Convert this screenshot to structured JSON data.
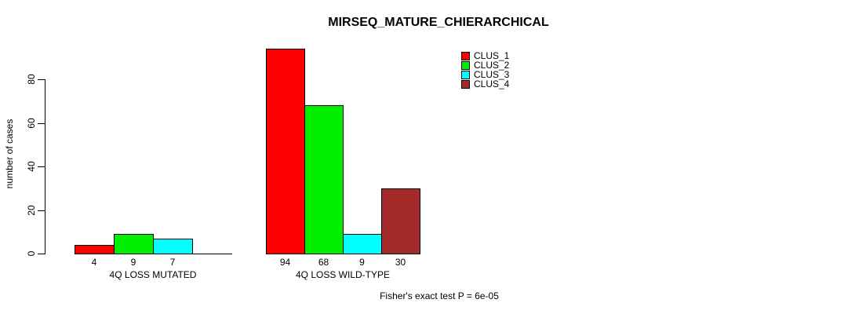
{
  "chart_data": {
    "type": "bar",
    "title": "MIRSEQ_MATURE_CHIERARCHICAL",
    "xlabel": "",
    "ylabel": "number of cases",
    "ylim": [
      0,
      95
    ],
    "yticks": [
      0,
      20,
      40,
      60,
      80
    ],
    "grid": false,
    "legend_position": "top-right-inside",
    "categories": [
      "4Q LOSS MUTATED",
      "4Q LOSS WILD-TYPE"
    ],
    "series": [
      {
        "name": "CLUS_1",
        "color": "#ff0000",
        "values": [
          4,
          94
        ]
      },
      {
        "name": "CLUS_2",
        "color": "#00ee00",
        "values": [
          9,
          68
        ]
      },
      {
        "name": "CLUS_3",
        "color": "#00ffff",
        "values": [
          7,
          9
        ]
      },
      {
        "name": "CLUS_4",
        "color": "#a52a2a",
        "values": [
          0,
          30
        ]
      }
    ],
    "bar_value_labels": [
      [
        "4",
        "9",
        "7",
        ""
      ],
      [
        "94",
        "68",
        "9",
        "30"
      ]
    ],
    "annotation": "Fisher's exact test P = 6e-05"
  }
}
